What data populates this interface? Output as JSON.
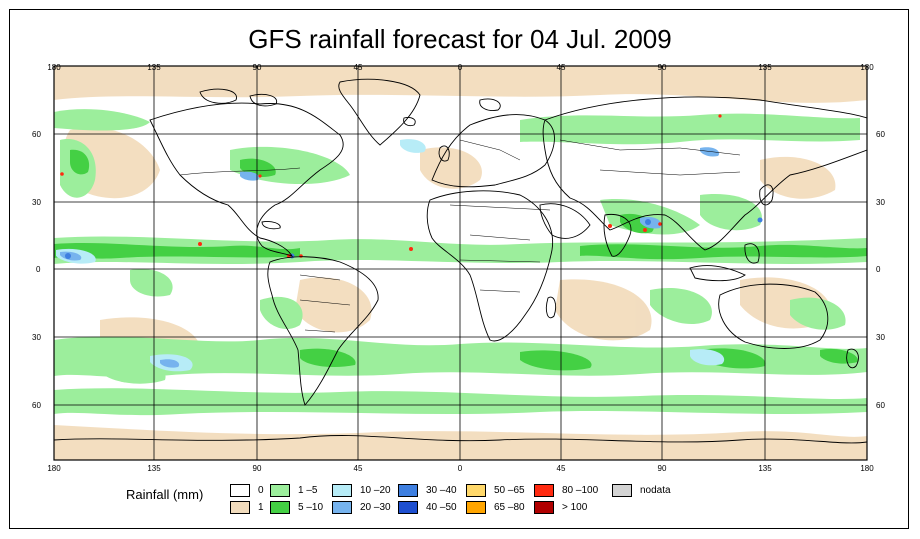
{
  "title": "GFS rainfall forecast for 04 Jul. 2009",
  "lon_ticks": [
    "180",
    "135",
    "90",
    "45",
    "0",
    "45",
    "90",
    "135",
    "180"
  ],
  "lat_ticks": [
    "60",
    "30",
    "0",
    "30",
    "60"
  ],
  "legend": {
    "title": "Rainfall (mm)",
    "items": [
      {
        "label": "0",
        "color": "#ffffff"
      },
      {
        "label": "1",
        "color": "#f2dcbd"
      },
      {
        "label": "1 –5",
        "color": "#9cee9c"
      },
      {
        "label": "5 –10",
        "color": "#44d044"
      },
      {
        "label": "10 –20",
        "color": "#b7ecf7"
      },
      {
        "label": "20 –30",
        "color": "#76b3ee"
      },
      {
        "label": "30 –40",
        "color": "#3e7fe0"
      },
      {
        "label": "40 –50",
        "color": "#1e4fd0"
      },
      {
        "label": "50 –65",
        "color": "#ffd86a"
      },
      {
        "label": "65 –80",
        "color": "#ffa500"
      },
      {
        "label": "80 –100",
        "color": "#ff2a10"
      },
      {
        "label": "> 100",
        "color": "#b00000"
      },
      {
        "label": "nodata",
        "color": "#d3d3d3"
      }
    ]
  }
}
